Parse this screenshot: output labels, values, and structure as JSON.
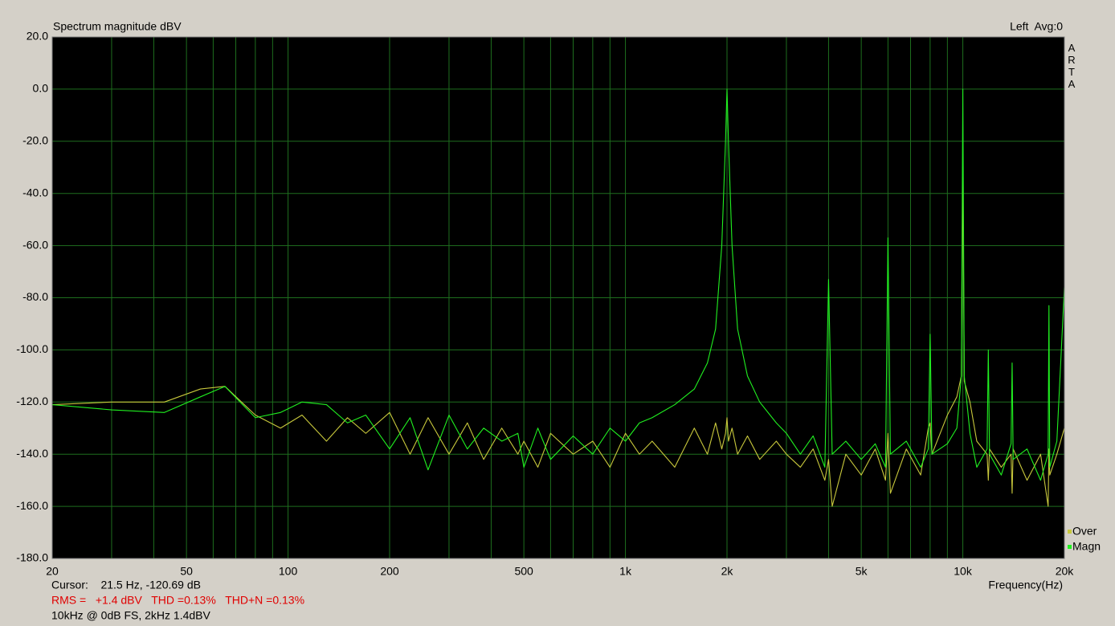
{
  "chart_data": {
    "type": "line",
    "title": "Spectrum magnitude dBV",
    "channel_label": "Left  Avg:0",
    "brand": "ARTA",
    "x_label": "Frequency(Hz)",
    "annotations": [
      "Cursor:    21.5 Hz, -120.69 dB",
      "RMS =   +1.4 dBV   THD =0.13%   THD+N =0.13%",
      "10kHz @ 0dB FS, 2kHz 1.4dBV"
    ],
    "x_scale": "log",
    "xlim": [
      20,
      20000
    ],
    "ylim": [
      -180,
      20
    ],
    "xticks": [
      20,
      50,
      100,
      200,
      500,
      {
        "value": 1000,
        "label": "1k"
      },
      {
        "value": 2000,
        "label": "2k"
      },
      {
        "value": 5000,
        "label": "5k"
      },
      {
        "value": 10000,
        "label": "10k"
      },
      {
        "value": 20000,
        "label": "20k"
      }
    ],
    "x_minor_grid": [
      30,
      40,
      60,
      70,
      80,
      90,
      300,
      400,
      600,
      700,
      800,
      900,
      3000,
      4000,
      6000,
      7000,
      8000,
      9000
    ],
    "yticks": [
      {
        "value": 20,
        "label": "20.0"
      },
      {
        "value": 0,
        "label": "0.0"
      },
      {
        "value": -20,
        "label": "-20.0"
      },
      {
        "value": -40,
        "label": "-40.0"
      },
      {
        "value": -60,
        "label": "-60.0"
      },
      {
        "value": -80,
        "label": "-80.0"
      },
      {
        "value": -100,
        "label": "-100.0"
      },
      {
        "value": -120,
        "label": "-120.0"
      },
      {
        "value": -140,
        "label": "-140.0"
      },
      {
        "value": -160,
        "label": "-160.0"
      },
      {
        "value": -180,
        "label": "-180.0"
      }
    ],
    "grid": true,
    "legend": "bottom-right",
    "x": [
      20,
      30,
      43,
      55,
      65,
      80,
      95,
      110,
      130,
      150,
      170,
      200,
      230,
      260,
      300,
      340,
      380,
      430,
      480,
      500,
      550,
      600,
      700,
      800,
      900,
      1000,
      1100,
      1200,
      1400,
      1600,
      1750,
      1850,
      1930,
      1980,
      2000,
      2020,
      2070,
      2150,
      2300,
      2500,
      2800,
      3000,
      3300,
      3600,
      3900,
      4000,
      4100,
      4500,
      5000,
      5500,
      5900,
      6000,
      6100,
      6800,
      7500,
      7900,
      8000,
      8100,
      9000,
      9600,
      9900,
      10000,
      10100,
      10500,
      11000,
      11800,
      11900,
      12000,
      13000,
      13900,
      14000,
      14100,
      15500,
      17000,
      17900,
      18000,
      18100,
      19000,
      20000
    ],
    "series": [
      {
        "name": "Over",
        "color": "#c8c83c",
        "values": [
          -121,
          -120,
          -120,
          -115,
          -114,
          -125,
          -130,
          -125,
          -135,
          -126,
          -132,
          -124,
          -140,
          -126,
          -140,
          -128,
          -142,
          -130,
          -140,
          -135,
          -145,
          -132,
          -140,
          -135,
          -145,
          -132,
          -140,
          -135,
          -145,
          -130,
          -140,
          -128,
          -138,
          -132,
          -126,
          -135,
          -130,
          -140,
          -133,
          -142,
          -135,
          -140,
          -145,
          -138,
          -150,
          -142,
          -160,
          -140,
          -148,
          -138,
          -150,
          -132,
          -155,
          -138,
          -148,
          -130,
          -128,
          -140,
          -125,
          -118,
          -110,
          -28,
          -112,
          -120,
          -135,
          -140,
          -150,
          -138,
          -145,
          -140,
          -155,
          -138,
          -150,
          -140,
          -160,
          -138,
          -148,
          -140,
          -130
        ]
      },
      {
        "name": "Magn",
        "color": "#20f020",
        "values": [
          -121,
          -123,
          -124,
          -118,
          -114,
          -126,
          -124,
          -120,
          -121,
          -128,
          -125,
          -138,
          -126,
          -146,
          -125,
          -138,
          -130,
          -135,
          -132,
          -145,
          -130,
          -142,
          -133,
          -140,
          -130,
          -135,
          -128,
          -126,
          -121,
          -115,
          -105,
          -92,
          -60,
          -20,
          0,
          -20,
          -60,
          -92,
          -110,
          -120,
          -128,
          -132,
          -140,
          -133,
          -145,
          -73,
          -140,
          -135,
          -142,
          -136,
          -145,
          -57,
          -140,
          -135,
          -145,
          -138,
          -94,
          -140,
          -136,
          -130,
          -110,
          0,
          -110,
          -132,
          -145,
          -138,
          -100,
          -140,
          -148,
          -136,
          -105,
          -142,
          -138,
          -150,
          -140,
          -83,
          -145,
          -135,
          -76
        ]
      }
    ]
  }
}
